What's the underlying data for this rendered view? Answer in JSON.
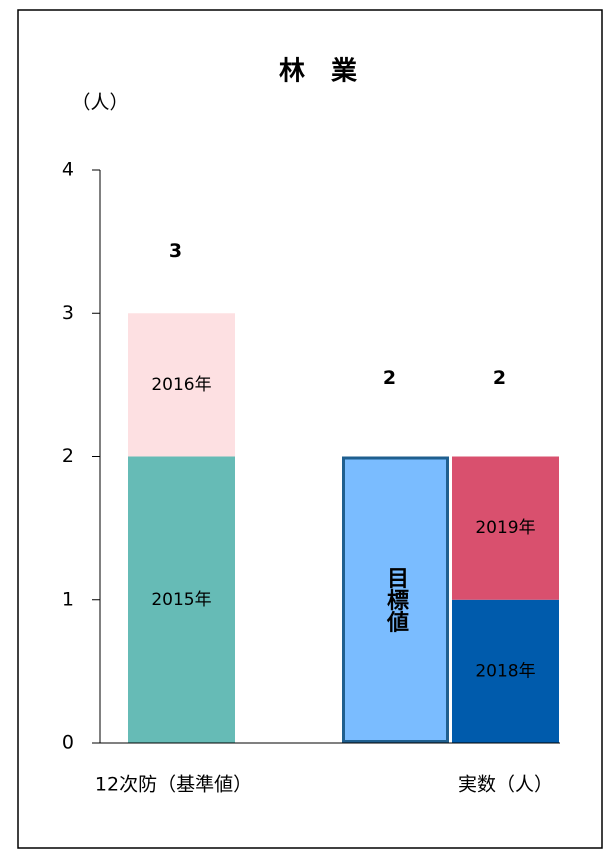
{
  "chart_data": {
    "type": "bar",
    "stacked": true,
    "title": "林　業",
    "y_label": "（人）",
    "ylim": [
      0,
      4
    ],
    "yticks": [
      0,
      1,
      2,
      3,
      4
    ],
    "bars": [
      {
        "category": "12次防（基準値）",
        "total": 3,
        "segments": [
          {
            "name": "2015年",
            "value": 2,
            "color": "#66bbb6"
          },
          {
            "name": "2016年",
            "value": 1,
            "color": "#fde0e2"
          }
        ]
      },
      {
        "total": 2,
        "segments": [
          {
            "name": "目標値",
            "value": 2,
            "color": "#7abcff",
            "outline": "#1f5f8f"
          }
        ]
      },
      {
        "category": "実数（人）",
        "total": 2,
        "segments": [
          {
            "name": "2018年",
            "value": 1,
            "color": "#005bac"
          },
          {
            "name": "2019年",
            "value": 1,
            "color": "#d9506e"
          }
        ]
      }
    ]
  }
}
